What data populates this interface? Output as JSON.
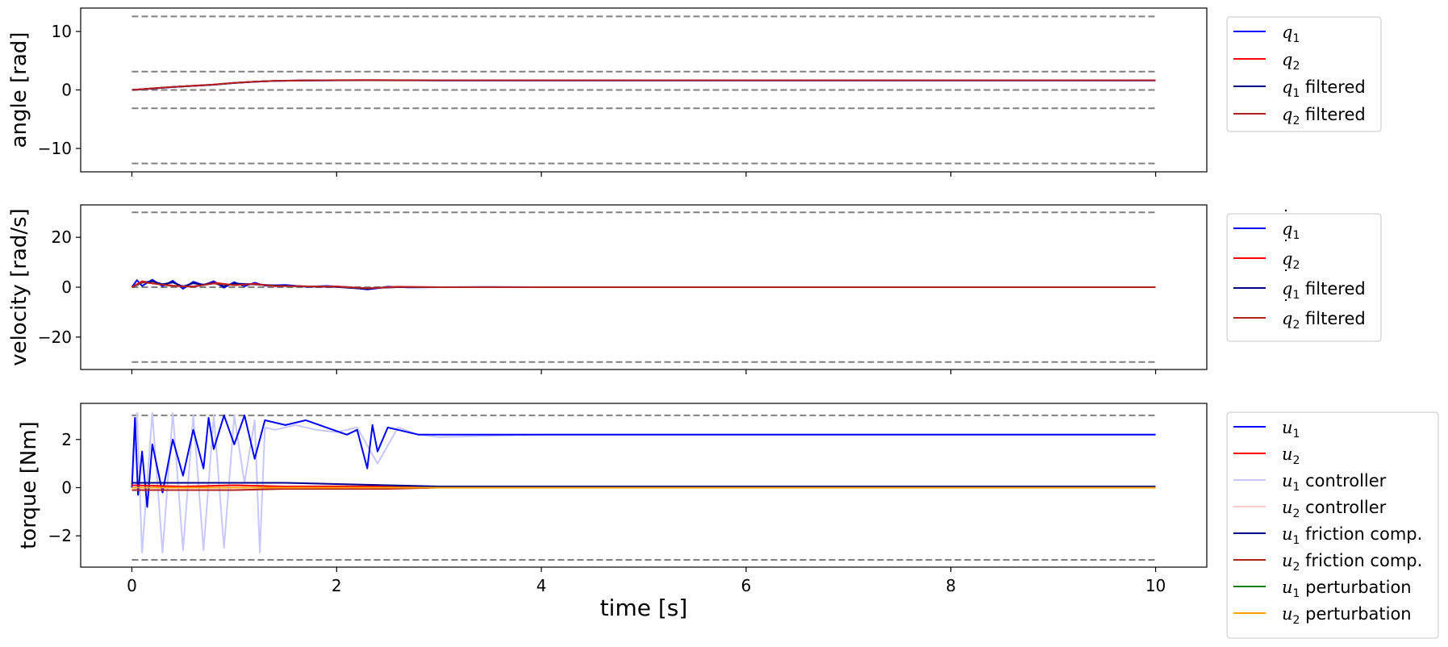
{
  "chart_data": [
    {
      "type": "line",
      "ylabel": "angle [rad]",
      "xlim": [
        -0.5,
        10.5
      ],
      "ylim": [
        -14,
        14
      ],
      "xticks": [
        0,
        2,
        4,
        6,
        8,
        10
      ],
      "yticks": [
        -10,
        0,
        10
      ],
      "ytick_labels": [
        "−10",
        "0",
        "10"
      ],
      "xtick_labels_shown": false,
      "grid": false,
      "legend_position": "right-outside-top",
      "limit_lines": [
        12.57,
        3.14,
        0,
        -3.14,
        -12.57
      ],
      "limit_line_color": "#808080",
      "series": [
        {
          "name": "q1",
          "legend": {
            "sym": "q",
            "dot": false,
            "sub": "1",
            "suffix": ""
          },
          "color": "#0000ff",
          "x": [
            0,
            0.2,
            0.4,
            0.6,
            0.8,
            1.0,
            1.2,
            1.4,
            1.7,
            2.0,
            2.3,
            2.6,
            3,
            4,
            5,
            6,
            7,
            8,
            9,
            10
          ],
          "y": [
            0,
            0.25,
            0.5,
            0.7,
            0.9,
            1.2,
            1.4,
            1.55,
            1.62,
            1.65,
            1.66,
            1.65,
            1.64,
            1.64,
            1.64,
            1.64,
            1.64,
            1.64,
            1.64,
            1.64
          ]
        },
        {
          "name": "q2",
          "legend": {
            "sym": "q",
            "dot": false,
            "sub": "2",
            "suffix": ""
          },
          "color": "#ff0000",
          "x": [
            0,
            0.2,
            0.4,
            0.6,
            0.8,
            1.0,
            1.2,
            1.4,
            1.7,
            2.0,
            2.3,
            2.6,
            3,
            4,
            5,
            6,
            7,
            8,
            9,
            10
          ],
          "y": [
            0,
            0.27,
            0.52,
            0.72,
            0.92,
            1.22,
            1.42,
            1.57,
            1.64,
            1.67,
            1.68,
            1.67,
            1.66,
            1.66,
            1.66,
            1.66,
            1.66,
            1.66,
            1.66,
            1.66
          ]
        },
        {
          "name": "q1 filtered",
          "legend": {
            "sym": "q",
            "dot": false,
            "sub": "1",
            "suffix": " filtered"
          },
          "color": "#00008b",
          "x": [
            0,
            0.2,
            0.4,
            0.6,
            0.8,
            1.0,
            1.2,
            1.4,
            1.7,
            2.0,
            2.3,
            2.6,
            3,
            4,
            5,
            6,
            7,
            8,
            9,
            10
          ],
          "y": [
            0,
            0.24,
            0.49,
            0.69,
            0.89,
            1.19,
            1.39,
            1.54,
            1.61,
            1.64,
            1.65,
            1.64,
            1.63,
            1.63,
            1.63,
            1.63,
            1.63,
            1.63,
            1.63,
            1.63
          ]
        },
        {
          "name": "q2 filtered",
          "legend": {
            "sym": "q",
            "dot": false,
            "sub": "2",
            "suffix": " filtered"
          },
          "color": "#b22222",
          "x": [
            0,
            0.2,
            0.4,
            0.6,
            0.8,
            1.0,
            1.2,
            1.4,
            1.7,
            2.0,
            2.3,
            2.6,
            3,
            4,
            5,
            6,
            7,
            8,
            9,
            10
          ],
          "y": [
            0,
            0.26,
            0.51,
            0.71,
            0.91,
            1.21,
            1.41,
            1.56,
            1.63,
            1.66,
            1.67,
            1.66,
            1.65,
            1.65,
            1.65,
            1.65,
            1.65,
            1.65,
            1.65,
            1.65
          ]
        }
      ]
    },
    {
      "type": "line",
      "ylabel": "velocity [rad/s]",
      "xlim": [
        -0.5,
        10.5
      ],
      "ylim": [
        -33,
        33
      ],
      "xticks": [
        0,
        2,
        4,
        6,
        8,
        10
      ],
      "yticks": [
        -20,
        0,
        20
      ],
      "ytick_labels": [
        "−20",
        "0",
        "20"
      ],
      "xtick_labels_shown": false,
      "grid": false,
      "legend_position": "right-outside-top",
      "limit_lines": [
        30,
        0,
        -30
      ],
      "limit_line_color": "#808080",
      "series": [
        {
          "name": "q1 dot",
          "legend": {
            "sym": "q",
            "dot": true,
            "sub": "1",
            "suffix": ""
          },
          "color": "#0000ff",
          "x": [
            0,
            0.05,
            0.1,
            0.2,
            0.3,
            0.4,
            0.5,
            0.6,
            0.7,
            0.8,
            0.9,
            1.0,
            1.1,
            1.2,
            1.3,
            1.5,
            1.7,
            1.9,
            2.1,
            2.3,
            2.4,
            2.5,
            2.7,
            3.0,
            3.5,
            4,
            5,
            6,
            7,
            8,
            9,
            10
          ],
          "y": [
            0,
            2.8,
            0.5,
            3.0,
            0.4,
            2.6,
            -0.6,
            2.2,
            0.8,
            2.4,
            -0.2,
            2.0,
            0.4,
            1.8,
            0.6,
            0.9,
            0.2,
            0.5,
            0.1,
            -0.9,
            -0.4,
            0.2,
            -0.1,
            0,
            0.05,
            0,
            0,
            0,
            0,
            0,
            0,
            0
          ]
        },
        {
          "name": "q2 dot",
          "legend": {
            "sym": "q",
            "dot": true,
            "sub": "2",
            "suffix": ""
          },
          "color": "#ff0000",
          "x": [
            0,
            0.1,
            0.2,
            0.3,
            0.4,
            0.6,
            0.8,
            1.0,
            1.2,
            1.4,
            1.6,
            1.8,
            2.0,
            2.3,
            2.6,
            3,
            4,
            5,
            6,
            7,
            8,
            9,
            10
          ],
          "y": [
            0,
            2.4,
            1.6,
            1.2,
            0.6,
            0.3,
            1.8,
            0.8,
            1.4,
            0.4,
            0.5,
            0.2,
            0.3,
            -0.5,
            0.2,
            0,
            0,
            0,
            0,
            0,
            0,
            0,
            0
          ]
        },
        {
          "name": "q1 dot filtered",
          "legend": {
            "sym": "q",
            "dot": true,
            "sub": "1",
            "suffix": " filtered"
          },
          "color": "#00008b",
          "x": [
            0,
            0.1,
            0.2,
            0.3,
            0.4,
            0.5,
            0.6,
            0.7,
            0.8,
            0.9,
            1.0,
            1.2,
            1.4,
            1.7,
            2.0,
            2.3,
            2.4,
            2.6,
            3,
            4,
            5,
            6,
            7,
            8,
            9,
            10
          ],
          "y": [
            0,
            1.8,
            2.4,
            1.2,
            1.9,
            0.3,
            1.6,
            1.0,
            1.7,
            0.4,
            1.5,
            1.1,
            0.7,
            0.3,
            0.1,
            -0.7,
            -0.3,
            0,
            0,
            0,
            0,
            0,
            0,
            0,
            0,
            0
          ]
        },
        {
          "name": "q2 dot filtered",
          "legend": {
            "sym": "q",
            "dot": true,
            "sub": "2",
            "suffix": " filtered"
          },
          "color": "#b22222",
          "x": [
            0,
            0.1,
            0.2,
            0.4,
            0.6,
            0.8,
            1.0,
            1.2,
            1.4,
            1.6,
            2.0,
            2.3,
            2.6,
            3,
            4,
            5,
            6,
            7,
            8,
            9,
            10
          ],
          "y": [
            0,
            2.0,
            1.5,
            0.5,
            0.2,
            1.5,
            0.9,
            1.2,
            0.5,
            0.4,
            0.2,
            -0.4,
            0.1,
            0,
            0,
            0,
            0,
            0,
            0,
            0,
            0
          ]
        }
      ]
    },
    {
      "type": "line",
      "ylabel": "torque [Nm]",
      "xlabel": "time [s]",
      "xlim": [
        -0.5,
        10.5
      ],
      "ylim": [
        -3.3,
        3.5
      ],
      "xticks": [
        0,
        2,
        4,
        6,
        8,
        10
      ],
      "yticks": [
        -2,
        0,
        2
      ],
      "ytick_labels": [
        "−2",
        "0",
        "2"
      ],
      "xtick_labels": [
        "0",
        "2",
        "4",
        "6",
        "8",
        "10"
      ],
      "xtick_labels_shown": true,
      "grid": false,
      "legend_position": "right-outside-top",
      "limit_lines": [
        3.0,
        -3.0
      ],
      "limit_line_color": "#808080",
      "series": [
        {
          "name": "u1 controller",
          "legend": {
            "sym": "u",
            "dot": false,
            "sub": "1",
            "suffix": " controller"
          },
          "color": "#c8c8ff",
          "x": [
            0,
            0.05,
            0.1,
            0.2,
            0.3,
            0.4,
            0.5,
            0.6,
            0.7,
            0.8,
            0.9,
            1.0,
            1.1,
            1.2,
            1.25,
            1.3,
            1.4,
            1.6,
            1.8,
            2.0,
            2.2,
            2.4,
            2.6,
            2.8,
            3.0,
            4,
            5,
            6,
            7,
            8,
            9,
            10
          ],
          "y": [
            0,
            3.1,
            -2.7,
            3.1,
            -2.7,
            3.1,
            -2.6,
            3.0,
            -2.6,
            3.0,
            -2.5,
            3.0,
            0.2,
            2.8,
            -2.7,
            2.5,
            2.4,
            2.6,
            2.4,
            2.3,
            2.5,
            1.0,
            2.5,
            2.2,
            2.1,
            2.2,
            2.2,
            2.2,
            2.2,
            2.2,
            2.2,
            2.2
          ]
        },
        {
          "name": "u2 controller",
          "legend": {
            "sym": "u",
            "dot": false,
            "sub": "2",
            "suffix": " controller"
          },
          "color": "#ffc8c8",
          "x": [
            0,
            0.5,
            1,
            1.5,
            2,
            2.5,
            3,
            4,
            5,
            6,
            7,
            8,
            9,
            10
          ],
          "y": [
            0.1,
            0.05,
            0.1,
            0.05,
            0.08,
            0.05,
            0.05,
            0.05,
            0.05,
            0.05,
            0.05,
            0.05,
            0.05,
            0.05
          ]
        },
        {
          "name": "u1",
          "legend": {
            "sym": "u",
            "dot": false,
            "sub": "1",
            "suffix": ""
          },
          "color": "#0000ff",
          "x": [
            0,
            0.03,
            0.06,
            0.1,
            0.15,
            0.2,
            0.3,
            0.4,
            0.5,
            0.6,
            0.7,
            0.75,
            0.8,
            0.9,
            1.0,
            1.1,
            1.2,
            1.3,
            1.5,
            1.7,
            1.9,
            2.1,
            2.2,
            2.3,
            2.35,
            2.4,
            2.5,
            2.6,
            2.8,
            3.0,
            4,
            5,
            6,
            7,
            8,
            9,
            10
          ],
          "y": [
            0,
            2.9,
            -0.3,
            1.5,
            -0.8,
            1.8,
            -0.2,
            2.0,
            0.5,
            2.4,
            0.8,
            2.9,
            1.6,
            3.0,
            1.8,
            3.0,
            1.2,
            2.8,
            2.6,
            2.8,
            2.5,
            2.2,
            2.4,
            0.8,
            2.6,
            1.5,
            2.5,
            2.4,
            2.2,
            2.2,
            2.2,
            2.2,
            2.2,
            2.2,
            2.2,
            2.2,
            2.2
          ]
        },
        {
          "name": "u2",
          "legend": {
            "sym": "u",
            "dot": false,
            "sub": "2",
            "suffix": ""
          },
          "color": "#ff0000",
          "x": [
            0,
            0.5,
            1,
            1.5,
            2,
            2.5,
            3,
            4,
            5,
            6,
            7,
            8,
            9,
            10
          ],
          "y": [
            0.1,
            0.05,
            0.1,
            0.05,
            0.05,
            0.05,
            0.05,
            0.05,
            0.05,
            0.05,
            0.05,
            0.05,
            0.05,
            0.05
          ]
        },
        {
          "name": "u1 friction comp.",
          "legend": {
            "sym": "u",
            "dot": false,
            "sub": "1",
            "suffix": " friction comp."
          },
          "color": "#00008b",
          "x": [
            0,
            0.2,
            0.4,
            0.6,
            0.8,
            1.0,
            1.5,
            2.0,
            2.5,
            3.0,
            4,
            5,
            6,
            7,
            8,
            9,
            10
          ],
          "y": [
            0.2,
            0.2,
            0.2,
            0.2,
            0.2,
            0.2,
            0.2,
            0.15,
            0.1,
            0.05,
            0.05,
            0.05,
            0.05,
            0.05,
            0.05,
            0.05,
            0.05
          ]
        },
        {
          "name": "u2 friction comp.",
          "legend": {
            "sym": "u",
            "dot": false,
            "sub": "2",
            "suffix": " friction comp."
          },
          "color": "#b22222",
          "x": [
            0,
            0.5,
            1.0,
            1.5,
            2.0,
            2.5,
            3.0,
            4,
            5,
            6,
            7,
            8,
            9,
            10
          ],
          "y": [
            -0.1,
            -0.1,
            -0.1,
            -0.05,
            -0.05,
            -0.05,
            0,
            0,
            0,
            0,
            0,
            0,
            0,
            0
          ]
        },
        {
          "name": "u1 perturbation",
          "legend": {
            "sym": "u",
            "dot": false,
            "sub": "1",
            "suffix": " perturbation"
          },
          "color": "#008000",
          "x": [
            0,
            10
          ],
          "y": [
            0,
            0
          ]
        },
        {
          "name": "u2 perturbation",
          "legend": {
            "sym": "u",
            "dot": false,
            "sub": "2",
            "suffix": " perturbation"
          },
          "color": "#ffa500",
          "x": [
            0,
            10
          ],
          "y": [
            0,
            0
          ]
        }
      ]
    }
  ]
}
